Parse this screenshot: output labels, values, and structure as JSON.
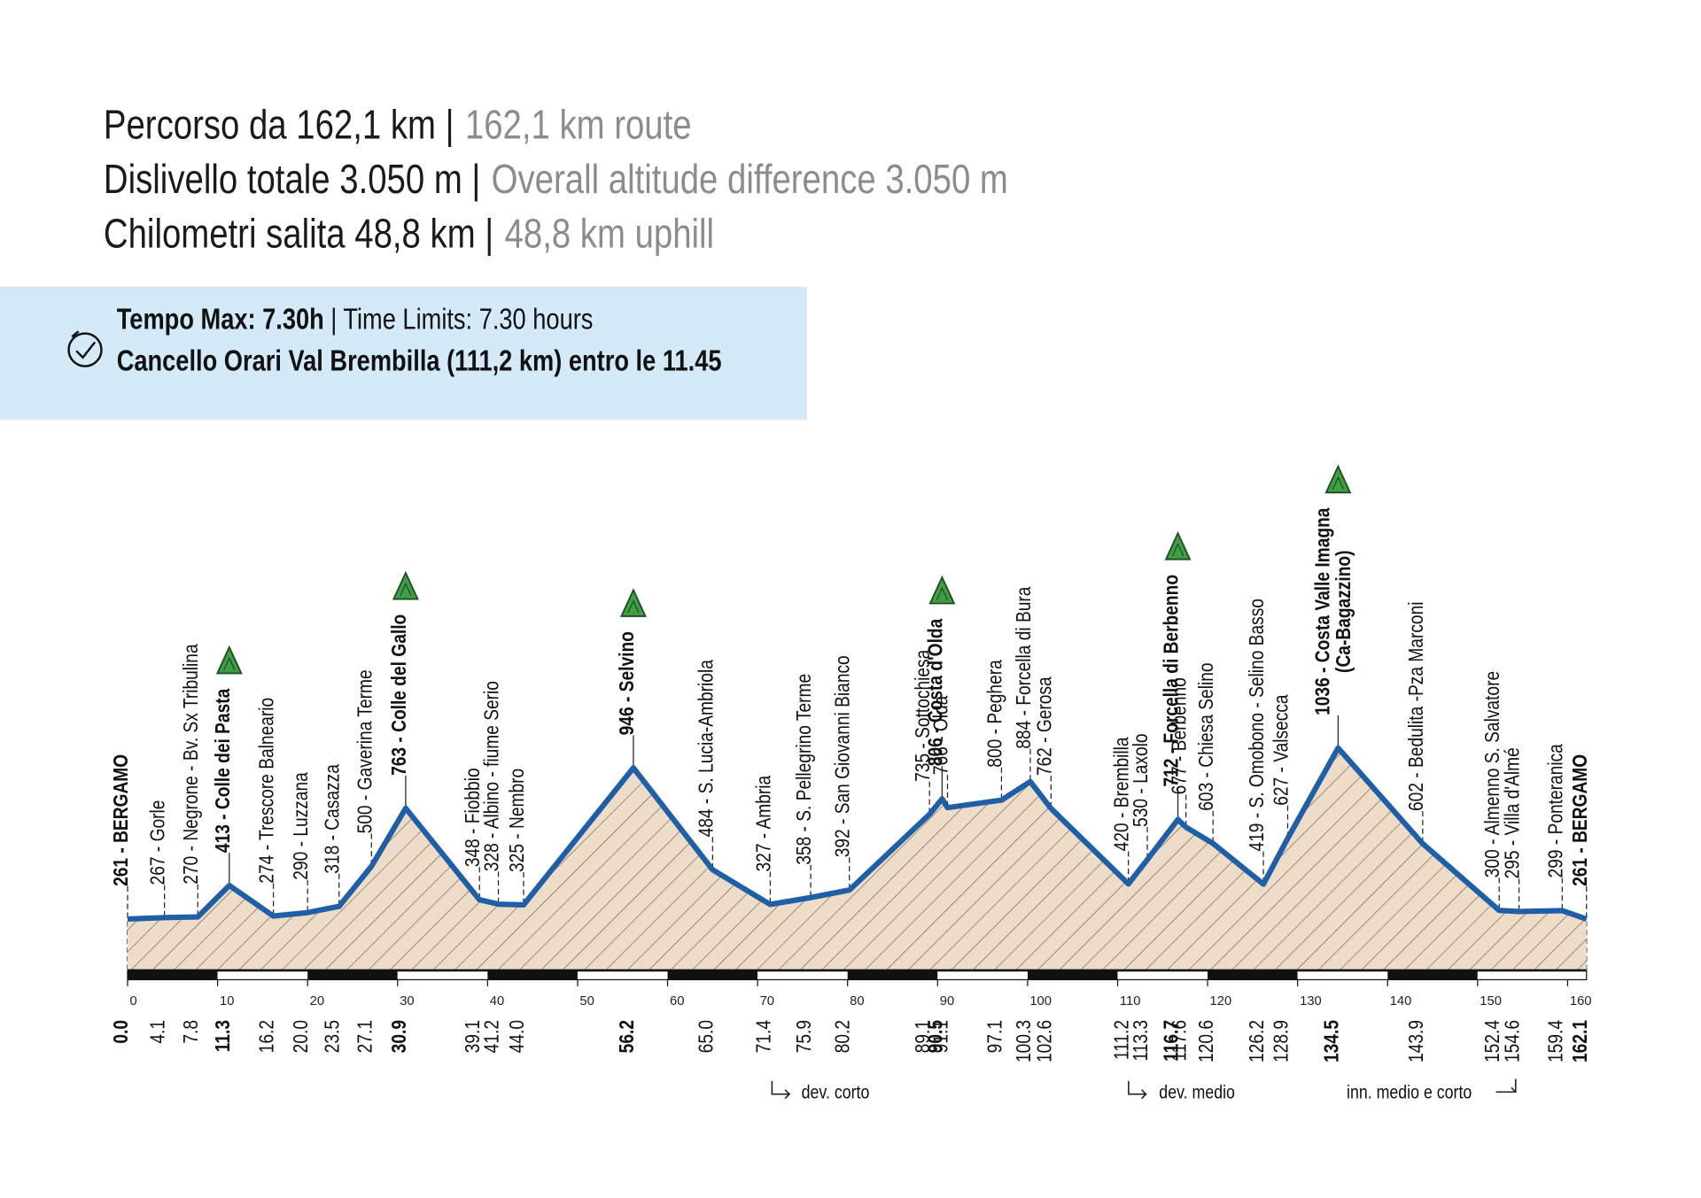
{
  "header": {
    "lines": [
      {
        "it": "Percorso da 162,1 km |",
        "en": "162,1 km route"
      },
      {
        "it": "Dislivello totale 3.050 m |",
        "en": "Overall altitude difference 3.050 m"
      },
      {
        "it": "Chilometri salita 48,8 km |",
        "en": "48,8 km uphill"
      }
    ]
  },
  "info": {
    "line1_bold": "Tempo Max: 7.30h",
    "line1_rest": "| Time Limits: 7.30 hours",
    "line2": "Cancello Orari Val Brembilla (111,2 km) entro le 11.45"
  },
  "chart_data": {
    "type": "area",
    "color": "#1f5fa8",
    "fill": "#ecdcc8",
    "xlim": [
      0,
      162.1
    ],
    "ylim": [
      30,
      1300
    ],
    "xticks": [
      0,
      10,
      20,
      30,
      40,
      50,
      60,
      70,
      80,
      90,
      100,
      110,
      120,
      130,
      140,
      150,
      160
    ],
    "waypoints": [
      {
        "km": {
          "value": 0,
          "label": "0.0"
        },
        "altitude": 261,
        "label": "261 - BERGAMO",
        "bold": true
      },
      {
        "km": 4.1,
        "altitude": 267,
        "label": "267 - Gorle"
      },
      {
        "km": 7.8,
        "altitude": 270,
        "label": "270 - Negrone - Bv. Sx Tribulina"
      },
      {
        "km": 11.3,
        "altitude": 413,
        "label": "413 - Colle dei Pasta",
        "bold": true,
        "summit": true
      },
      {
        "km": 16.2,
        "altitude": 274,
        "label": "274 - Trescore Balneario"
      },
      {
        "km": {
          "value": 20,
          "label": "20.0"
        },
        "altitude": 290,
        "label": "290 - Luzzana"
      },
      {
        "km": 23.5,
        "altitude": 318,
        "label": "318 - Casazza"
      },
      {
        "km": 27.1,
        "altitude": 500,
        "label": "500 - Gaverina Terme"
      },
      {
        "km": 30.9,
        "altitude": 763,
        "label": "763 - Colle del Gallo",
        "bold": true,
        "summit": true
      },
      {
        "km": 39.1,
        "altitude": 348,
        "label": "348 - Fiobbio"
      },
      {
        "km": 41.2,
        "altitude": 328,
        "label": "328 - Albino - fiume Serio"
      },
      {
        "km": {
          "value": 44,
          "label": "44.0"
        },
        "altitude": 325,
        "label": "325 - Nembro"
      },
      {
        "km": 56.2,
        "altitude": 946,
        "label": "946 - Selvino",
        "bold": true,
        "summit": true
      },
      {
        "km": {
          "value": 65,
          "label": "65.0"
        },
        "altitude": 484,
        "label": "484 - S. Lucia-Ambriola"
      },
      {
        "km": 71.4,
        "altitude": 327,
        "label": "327 - Ambria"
      },
      {
        "km": 75.9,
        "altitude": 358,
        "label": "358 - S. Pellegrino Terme"
      },
      {
        "km": 80.2,
        "altitude": 392,
        "label": "392 - San Giovanni Bianco"
      },
      {
        "km": 89.1,
        "altitude": 735,
        "label": "735 - Sottochiesa"
      },
      {
        "km": 90.5,
        "altitude": 806,
        "label": "806 - Costa d'Olda",
        "bold": true,
        "summit": true
      },
      {
        "km": 91.1,
        "altitude": 766,
        "label": "766 - Olda"
      },
      {
        "km": 97.1,
        "altitude": 800,
        "label": "800 - Peghera"
      },
      {
        "km": 100.3,
        "altitude": 884,
        "label": "884 - Forcella di Bura"
      },
      {
        "km": 102.6,
        "altitude": 762,
        "label": "762 - Gerosa"
      },
      {
        "km": 111.2,
        "altitude": 420,
        "label": "420 - Brembilla"
      },
      {
        "km": 113.3,
        "altitude": 530,
        "label": "530 - Laxolo"
      },
      {
        "km": 116.7,
        "altitude": 712,
        "label": "712 - Forcella di Berbenno",
        "bold": true,
        "summit": true
      },
      {
        "km": 117.6,
        "altitude": 677,
        "label": "677 - Berbenno"
      },
      {
        "km": 120.6,
        "altitude": 603,
        "label": "603 - Chiesa Selino"
      },
      {
        "km": 126.2,
        "altitude": 419,
        "label": "419 - S. Omobono - Selino Basso"
      },
      {
        "km": 128.9,
        "altitude": 627,
        "label": "627 - Valsecca"
      },
      {
        "km": 134.5,
        "altitude": 1036,
        "label": "1036 - Costa Valle Imagna",
        "label_2": "(Ca-Bagazzino)",
        "bold": true,
        "summit": true
      },
      {
        "km": 143.9,
        "altitude": 602,
        "label": "602 - Bedulita -Pza Marconi"
      },
      {
        "km": 152.4,
        "altitude": 300,
        "label": "300 - Almenno S. Salvatore"
      },
      {
        "km": 154.6,
        "altitude": 295,
        "label": "295 - Villa d'Almé"
      },
      {
        "km": 159.4,
        "altitude": 299,
        "label": "299 - Ponteranica"
      },
      {
        "km": 162.1,
        "altitude": 261,
        "label": "261 - BERGAMO",
        "bold": true
      }
    ],
    "annotations": [
      "dev. corto",
      "dev. medio",
      "inn. medio e corto"
    ]
  }
}
